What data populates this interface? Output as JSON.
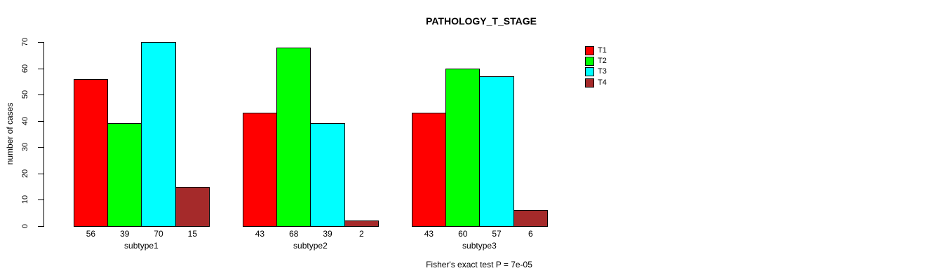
{
  "chart_data": {
    "type": "bar",
    "grouped": true,
    "title": "PATHOLOGY_T_STAGE",
    "ylabel": "number of cases",
    "xlabel": "",
    "categories": [
      "subtype1",
      "subtype2",
      "subtype3"
    ],
    "series": [
      {
        "name": "T1",
        "color": "#ff0000",
        "values": [
          56,
          43,
          43
        ]
      },
      {
        "name": "T2",
        "color": "#00ff00",
        "values": [
          39,
          68,
          60
        ]
      },
      {
        "name": "T3",
        "color": "#00ffff",
        "values": [
          70,
          39,
          57
        ]
      },
      {
        "name": "T4",
        "color": "#a52a2a",
        "values": [
          15,
          2,
          6
        ]
      }
    ],
    "ylim": [
      0,
      70
    ],
    "yticks": [
      0,
      10,
      20,
      30,
      40,
      50,
      60,
      70
    ],
    "bar_value_labels": true,
    "grid": false,
    "legend_position": "right",
    "annotation": "Fisher's exact test P = 7e-05",
    "colors": {
      "background": "#ffffff",
      "axis": "#000000",
      "bar_border": "#000000",
      "text": "#000000"
    }
  }
}
